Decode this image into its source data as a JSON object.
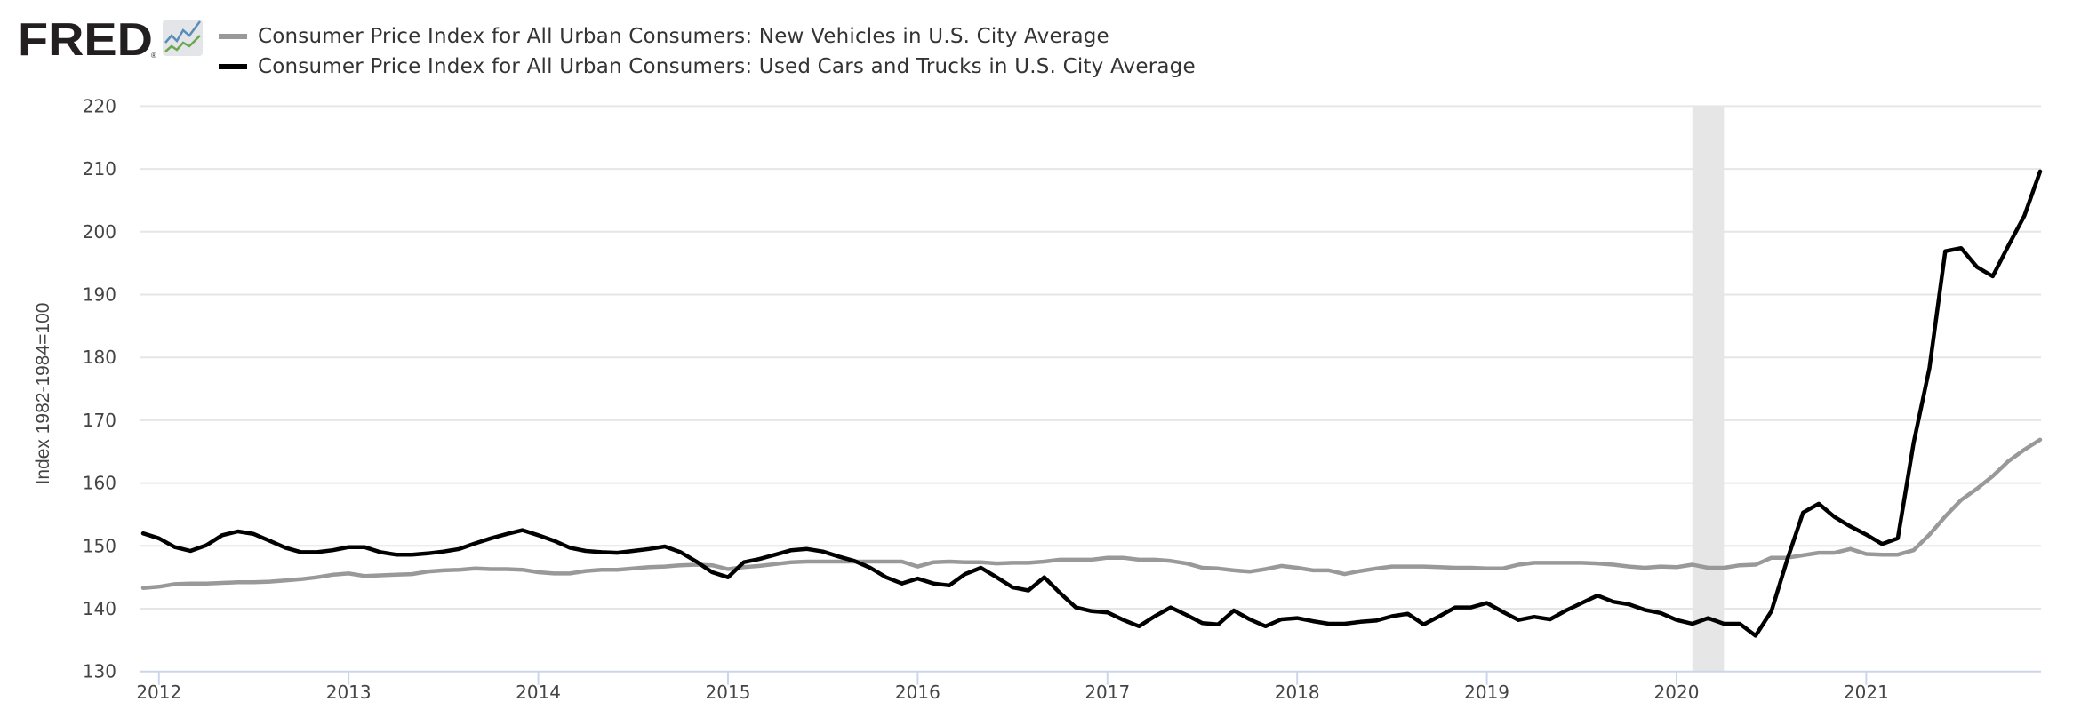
{
  "logo": {
    "text": "FRED",
    "registered": "®",
    "icon": "line-chart-icon"
  },
  "chart_data": {
    "type": "line",
    "title": "",
    "xlabel": "",
    "ylabel": "Index 1982-1984=100",
    "ylim": [
      130,
      220
    ],
    "yticks": [
      130,
      140,
      150,
      160,
      170,
      180,
      190,
      200,
      210,
      220
    ],
    "xtick_labels": [
      "2012",
      "2013",
      "2014",
      "2015",
      "2016",
      "2017",
      "2018",
      "2019",
      "2020",
      "2021"
    ],
    "grid": true,
    "legend_placement": "top-left",
    "start_month": "2011-12",
    "end_month": "2021-12",
    "frequency": "monthly",
    "recessions": [
      {
        "start": "2020-02",
        "end": "2020-04",
        "color": "#e6e6e6"
      }
    ],
    "series": [
      {
        "name": "Consumer Price Index for All Urban Consumers: New Vehicles in U.S. City Average",
        "color": "#999999",
        "values": [
          143.3,
          143.5,
          143.9,
          144.0,
          144.0,
          144.1,
          144.2,
          144.2,
          144.3,
          144.5,
          144.7,
          145.0,
          145.4,
          145.6,
          145.2,
          145.3,
          145.4,
          145.5,
          145.9,
          146.1,
          146.2,
          146.4,
          146.3,
          146.3,
          146.2,
          145.8,
          145.6,
          145.6,
          146.0,
          146.2,
          146.2,
          146.4,
          146.6,
          146.7,
          146.9,
          147.0,
          146.9,
          146.3,
          146.6,
          146.8,
          147.1,
          147.4,
          147.5,
          147.5,
          147.5,
          147.5,
          147.5,
          147.5,
          147.5,
          146.7,
          147.4,
          147.5,
          147.4,
          147.4,
          147.2,
          147.3,
          147.3,
          147.5,
          147.8,
          147.8,
          147.8,
          148.1,
          148.1,
          147.8,
          147.8,
          147.6,
          147.2,
          146.5,
          146.4,
          146.1,
          145.9,
          146.3,
          146.8,
          146.5,
          146.1,
          146.1,
          145.5,
          146.0,
          146.4,
          146.7,
          146.7,
          146.7,
          146.6,
          146.5,
          146.5,
          146.4,
          146.4,
          147.0,
          147.3,
          147.3,
          147.3,
          147.3,
          147.2,
          147.0,
          146.7,
          146.5,
          146.7,
          146.6,
          147.0,
          146.5,
          146.5,
          146.9,
          147.0,
          148.1,
          148.1,
          148.5,
          148.9,
          148.9,
          149.5,
          148.7,
          148.6,
          148.6,
          149.3,
          151.8,
          154.7,
          157.3,
          159.1,
          161.1,
          163.5,
          165.3,
          166.9
        ]
      },
      {
        "name": "Consumer Price Index for All Urban Consumers: Used Cars and Trucks in U.S. City Average",
        "color": "#000000",
        "values": [
          152.0,
          151.2,
          149.8,
          149.2,
          150.1,
          151.7,
          152.3,
          151.9,
          150.8,
          149.7,
          149.0,
          149.0,
          149.3,
          149.8,
          149.8,
          149.0,
          148.6,
          148.6,
          148.8,
          149.1,
          149.5,
          150.4,
          151.2,
          151.9,
          152.5,
          151.7,
          150.8,
          149.7,
          149.2,
          149.0,
          148.9,
          149.2,
          149.5,
          149.9,
          149.0,
          147.5,
          145.8,
          145.0,
          147.4,
          147.9,
          148.6,
          149.3,
          149.5,
          149.1,
          148.3,
          147.6,
          146.5,
          145.0,
          144.0,
          144.8,
          144.0,
          143.7,
          145.5,
          146.5,
          145.0,
          143.4,
          142.9,
          145.0,
          142.5,
          140.2,
          139.6,
          139.4,
          138.2,
          137.2,
          138.8,
          140.2,
          139.0,
          137.7,
          137.5,
          139.7,
          138.3,
          137.2,
          138.3,
          138.5,
          138.0,
          137.6,
          137.6,
          137.9,
          138.1,
          138.8,
          139.2,
          137.5,
          138.8,
          140.2,
          140.2,
          140.9,
          139.5,
          138.2,
          138.7,
          138.3,
          139.7,
          140.9,
          142.1,
          141.1,
          140.7,
          139.8,
          139.3,
          138.2,
          137.6,
          138.5,
          137.6,
          137.6,
          135.7,
          139.6,
          147.8,
          155.3,
          156.7,
          154.6,
          153.1,
          151.8,
          150.3,
          151.2,
          166.4,
          178.3,
          196.9,
          197.4,
          194.4,
          192.9,
          197.8,
          202.5,
          209.6
        ]
      }
    ]
  }
}
